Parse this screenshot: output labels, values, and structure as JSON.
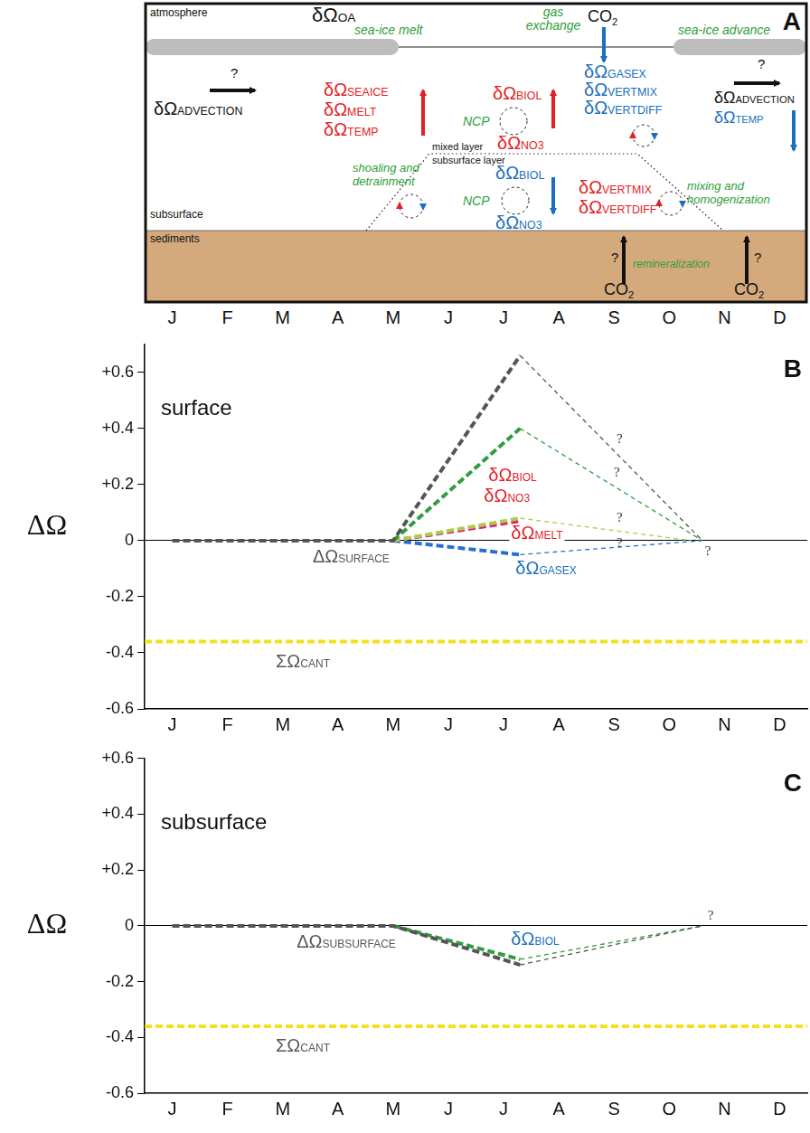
{
  "panel_A": {
    "letter": "A",
    "months": [
      "J",
      "F",
      "M",
      "A",
      "M",
      "J",
      "J",
      "A",
      "S",
      "O",
      "N",
      "D"
    ],
    "layers": {
      "atmosphere": "atmosphere",
      "mixed_layer": "mixed layer",
      "subsurface_layer": "subsurface layer",
      "subsurface": "subsurface",
      "sediments": "sediments"
    },
    "processes": {
      "sea_ice_melt": "sea-ice melt",
      "gas_exchange": "gas exchange",
      "sea_ice_advance": "sea-ice advance",
      "ncp": "NCP",
      "shoaling": "shoaling and detrainment",
      "mixing": "mixing and homogenization",
      "remineralization": "remineralization"
    },
    "ocean_acidification": "δΩOA",
    "co2": "CO2",
    "unknown": "?",
    "terms": {
      "advection_west": [
        "δΩADVECTION"
      ],
      "surface_increase": [
        "δΩSEAICE",
        "δΩMELT",
        "δΩTEMP"
      ],
      "surface_biology": [
        "δΩBIOL",
        "δΩNO3"
      ],
      "surface_decrease": [
        "δΩGASEX",
        "δΩVERTMIX",
        "δΩVERTDIFF"
      ],
      "advection_east": [
        "δΩADVECTION",
        "δΩTEMP"
      ],
      "subsurface_biology": [
        "δΩBIOL",
        "δΩNO3"
      ],
      "subsurface_increase": [
        "δΩVERTMIX",
        "δΩVERTDIFF"
      ]
    }
  },
  "chart_data": [
    {
      "type": "line",
      "letter": "B",
      "title": "surface",
      "y_label": "ΔΩ",
      "xlim": [
        -0.5,
        11.5
      ],
      "xticks": [
        {
          "value": 0,
          "label": "J"
        },
        {
          "value": 1,
          "label": "F"
        },
        {
          "value": 2,
          "label": "M"
        },
        {
          "value": 3,
          "label": "A"
        },
        {
          "value": 4,
          "label": "M"
        },
        {
          "value": 5,
          "label": "J"
        },
        {
          "value": 6,
          "label": "J"
        },
        {
          "value": 7,
          "label": "A"
        },
        {
          "value": 8,
          "label": "S"
        },
        {
          "value": 9,
          "label": "O"
        },
        {
          "value": 10,
          "label": "N"
        },
        {
          "value": 11,
          "label": "D"
        }
      ],
      "ylim": [
        -0.6,
        0.7
      ],
      "yticks": [
        -0.6,
        -0.4,
        -0.2,
        0,
        {
          "value": 0.2,
          "label": "+0.2"
        },
        {
          "value": 0.4,
          "label": "+0.4"
        },
        {
          "value": 0.6,
          "label": "+0.6"
        }
      ],
      "grid": false,
      "series": [
        {
          "name": "ΔΩSURFACE",
          "color": "#555555",
          "line_style": "dashed",
          "x": [
            0,
            4,
            6.3,
            9.6
          ],
          "values": [
            0,
            0,
            0.66,
            0
          ]
        },
        {
          "name": "δΩBIOL",
          "color": "#2e9e3e",
          "line_style": "dashed",
          "x": [
            4,
            6.3,
            9.6
          ],
          "values": [
            0,
            0.4,
            0
          ]
        },
        {
          "name": "δΩNO3",
          "color": "#a8cf45",
          "line_style": "dashed",
          "x": [
            4,
            6.3,
            9.4
          ],
          "values": [
            0,
            0.08,
            0
          ]
        },
        {
          "name": "δΩMELT",
          "color": "#e0207a",
          "line_style": "dashed",
          "x": [
            4,
            6.3
          ],
          "values": [
            0,
            0.07
          ]
        },
        {
          "name": "δΩGASEX",
          "color": "#2a6fd0",
          "line_style": "dashed",
          "x": [
            4,
            6.3,
            9.6
          ],
          "values": [
            0,
            -0.05,
            0
          ]
        },
        {
          "name": "ΣΩCANT",
          "color": "#f2e11c",
          "line_style": "dashed",
          "x": [
            -0.5,
            11.5
          ],
          "values": [
            -0.36,
            -0.36
          ]
        }
      ],
      "annotations": [
        {
          "text": "?",
          "x": 8.1,
          "y": 0.36
        },
        {
          "text": "?",
          "x": 8.05,
          "y": 0.24
        },
        {
          "text": "?",
          "x": 8.1,
          "y": 0.08
        },
        {
          "text": "?",
          "x": 8.1,
          "y": -0.01
        },
        {
          "text": "?",
          "x": 9.7,
          "y": -0.04
        }
      ]
    },
    {
      "type": "line",
      "letter": "C",
      "title": "subsurface",
      "y_label": "ΔΩ",
      "xlim": [
        -0.5,
        11.5
      ],
      "xticks": [
        {
          "value": 0,
          "label": "J"
        },
        {
          "value": 1,
          "label": "F"
        },
        {
          "value": 2,
          "label": "M"
        },
        {
          "value": 3,
          "label": "A"
        },
        {
          "value": 4,
          "label": "M"
        },
        {
          "value": 5,
          "label": "J"
        },
        {
          "value": 6,
          "label": "J"
        },
        {
          "value": 7,
          "label": "A"
        },
        {
          "value": 8,
          "label": "S"
        },
        {
          "value": 9,
          "label": "O"
        },
        {
          "value": 10,
          "label": "N"
        },
        {
          "value": 11,
          "label": "D"
        }
      ],
      "ylim": [
        -0.6,
        0.6
      ],
      "yticks": [
        -0.6,
        -0.4,
        -0.2,
        0,
        {
          "value": 0.2,
          "label": "+0.2"
        },
        {
          "value": 0.4,
          "label": "+0.4"
        },
        {
          "value": 0.6,
          "label": "+0.6"
        }
      ],
      "grid": false,
      "series": [
        {
          "name": "ΔΩSUBSURFACE",
          "color": "#555555",
          "line_style": "dashed",
          "x": [
            0,
            4,
            6.3,
            9.6
          ],
          "values": [
            0,
            0,
            -0.14,
            0
          ]
        },
        {
          "name": "δΩBIOL",
          "color": "#2e9e3e",
          "line_style": "dashed",
          "x": [
            4,
            6.3,
            9.6
          ],
          "values": [
            0,
            -0.12,
            0
          ]
        },
        {
          "name": "ΣΩCANT",
          "color": "#f2e11c",
          "line_style": "dashed",
          "x": [
            -0.5,
            11.5
          ],
          "values": [
            -0.36,
            -0.36
          ]
        }
      ],
      "annotations": [
        {
          "text": "?",
          "x": 9.75,
          "y": 0.035
        }
      ]
    }
  ]
}
